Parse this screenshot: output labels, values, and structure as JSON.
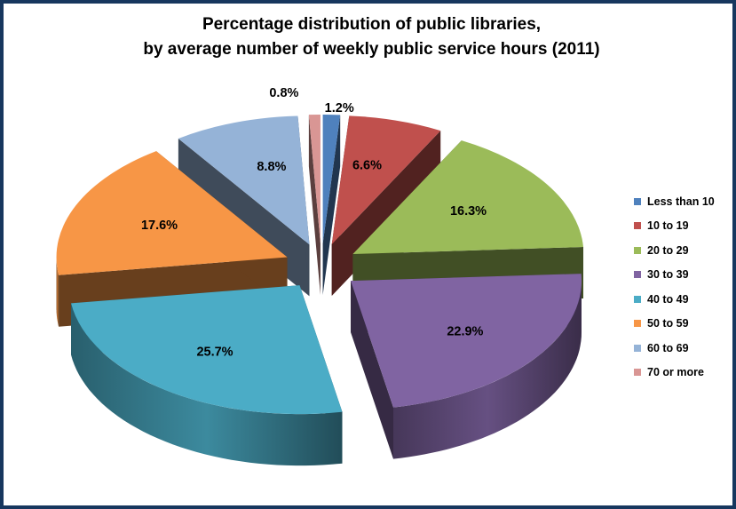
{
  "chart_data": {
    "type": "pie",
    "title_lines": [
      "Percentage distribution of public libraries,",
      "by average number of weekly public service hours (2011)"
    ],
    "slices": [
      {
        "label": "Less than 10",
        "value": 1.2,
        "display": "1.2%",
        "color": "#4f81bd"
      },
      {
        "label": "10 to 19",
        "value": 6.6,
        "display": "6.6%",
        "color": "#c0504d"
      },
      {
        "label": "20 to 29",
        "value": 16.3,
        "display": "16.3%",
        "color": "#9bbb59"
      },
      {
        "label": "30 to 39",
        "value": 22.9,
        "display": "22.9%",
        "color": "#8064a2"
      },
      {
        "label": "40 to 49",
        "value": 25.7,
        "display": "25.7%",
        "color": "#4bacc6"
      },
      {
        "label": "50 to 59",
        "value": 17.6,
        "display": "17.6%",
        "color": "#f79646"
      },
      {
        "label": "60 to 69",
        "value": 8.8,
        "display": "8.8%",
        "color": "#95b3d7"
      },
      {
        "label": "70 or more",
        "value": 0.8,
        "display": "0.8%",
        "color": "#d99694"
      }
    ],
    "style": "3d-exploded",
    "legend_position": "right"
  }
}
